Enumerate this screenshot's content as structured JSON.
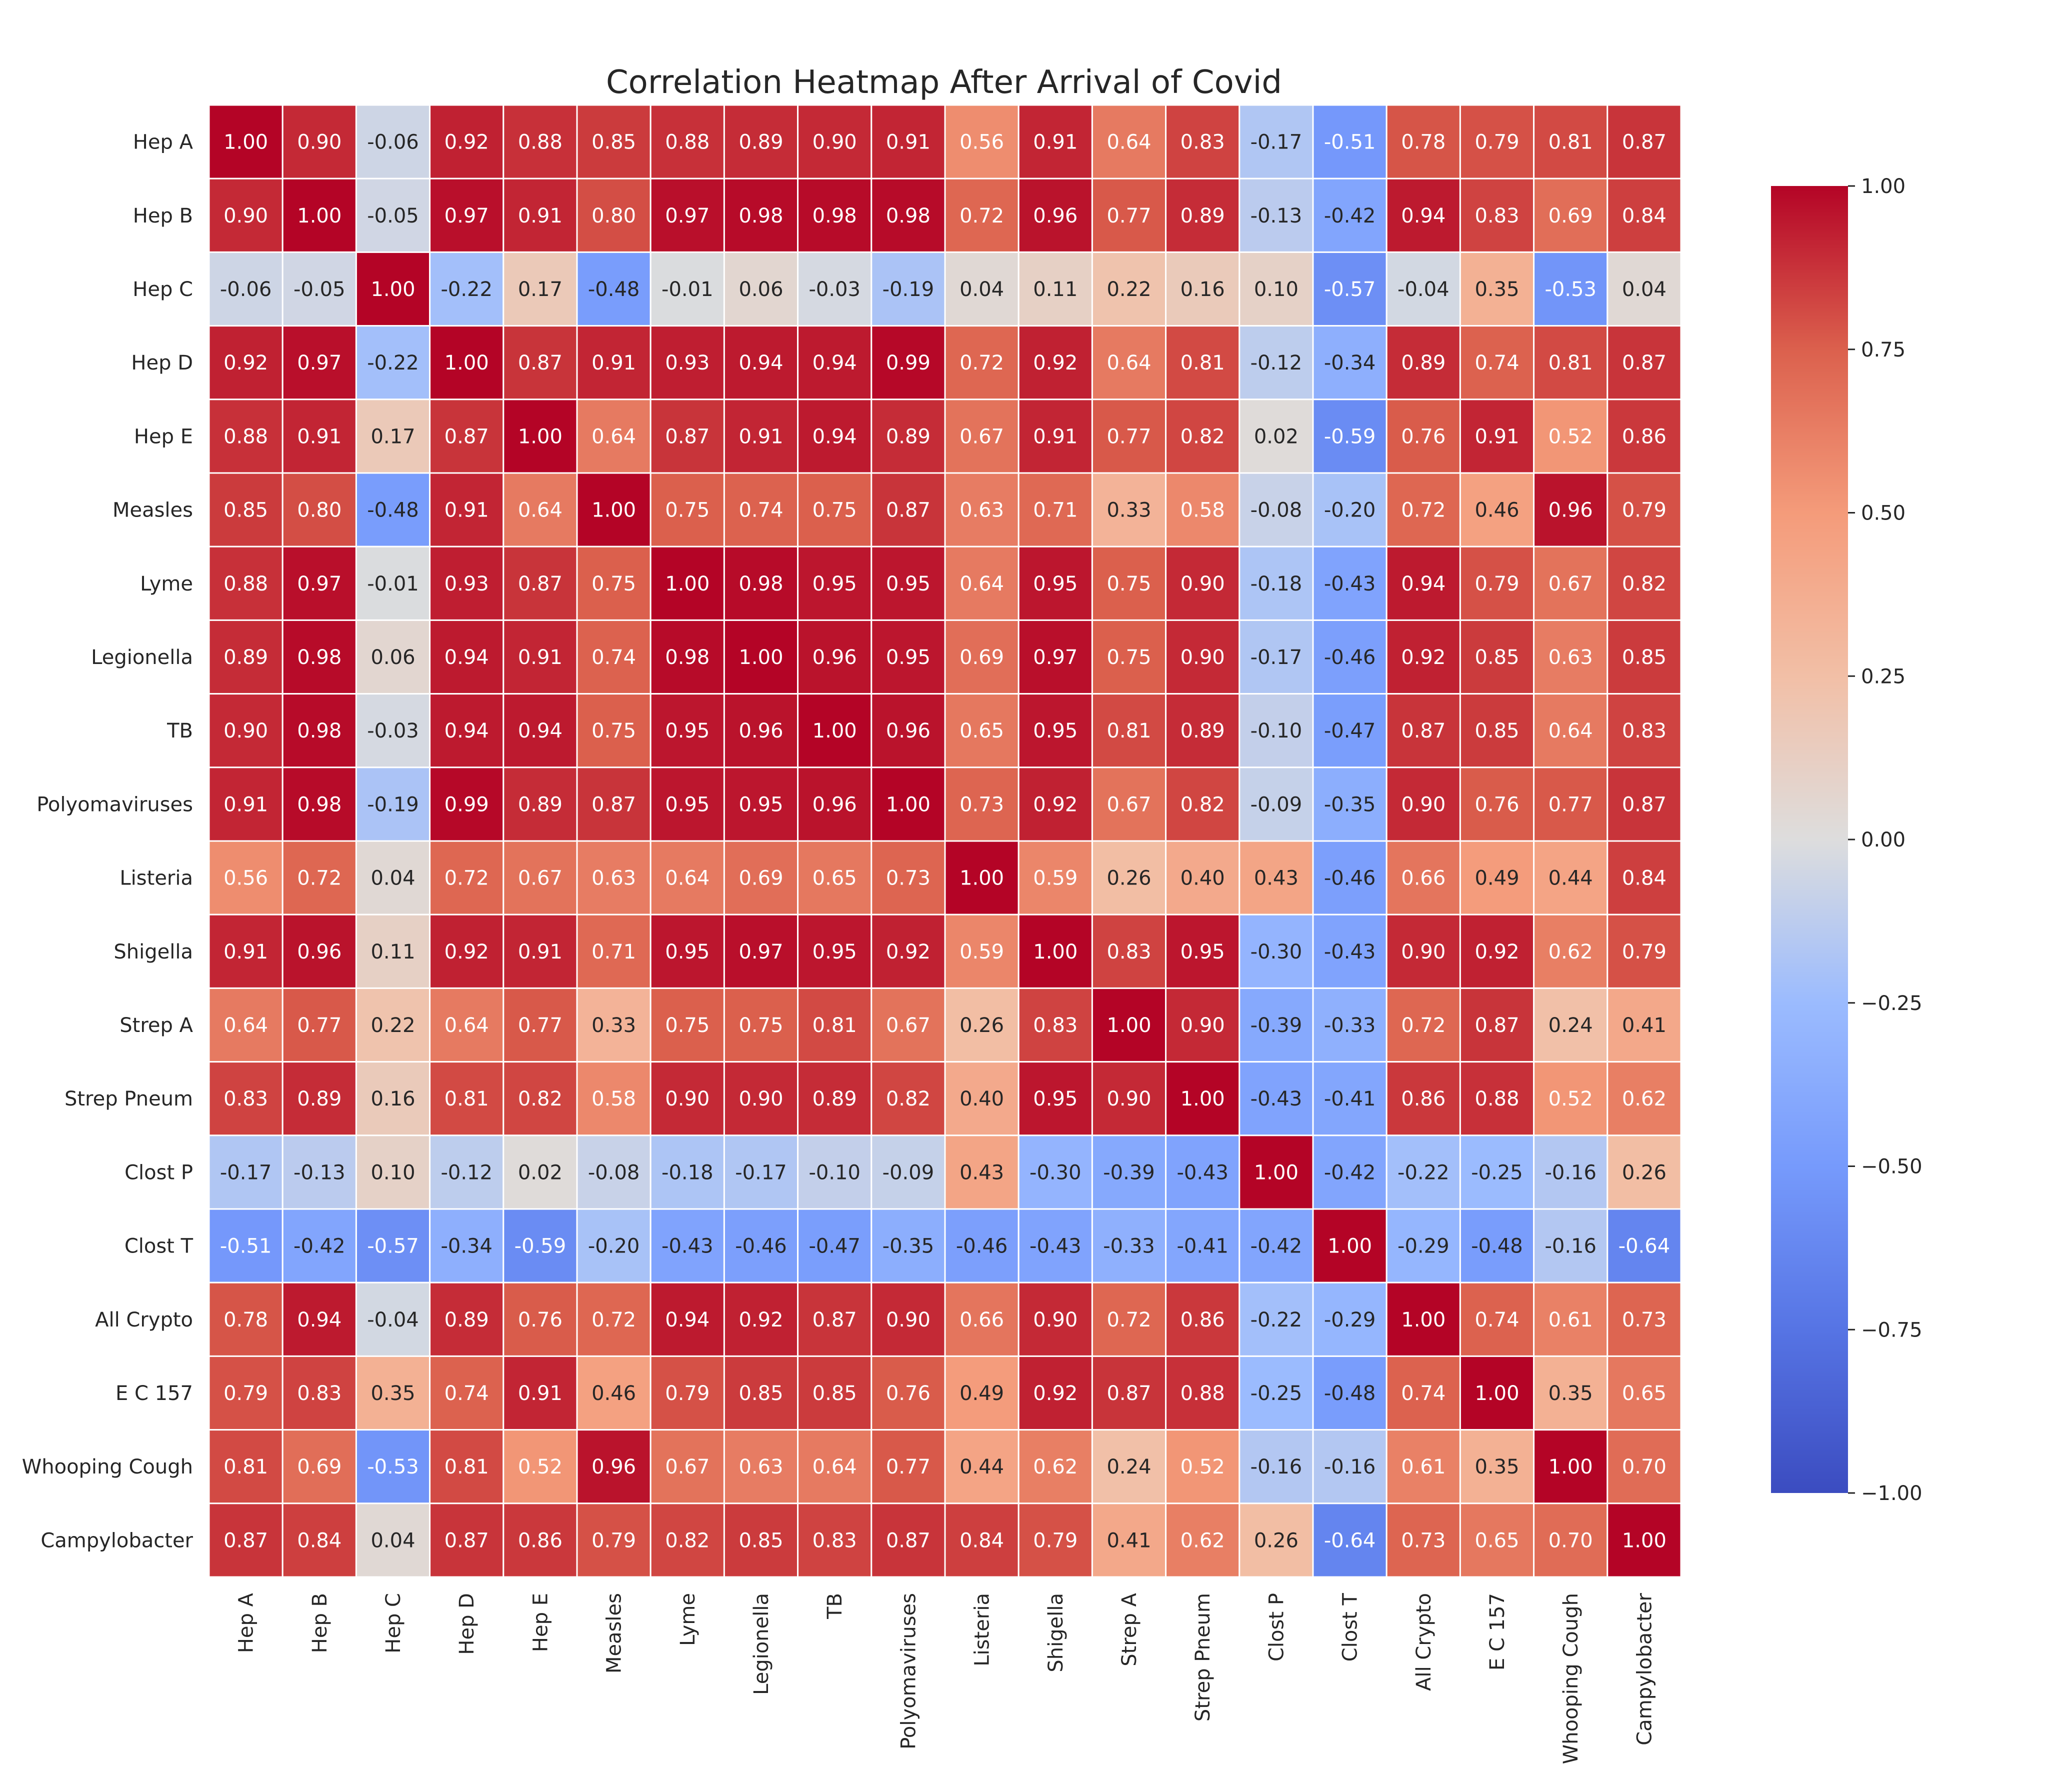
{
  "chart_data": {
    "type": "heatmap",
    "title": "Correlation Heatmap After Arrival of Covid",
    "xlabel": "",
    "ylabel": "",
    "labels": [
      "Hep A",
      "Hep B",
      "Hep C",
      "Hep D",
      "Hep E",
      "Measles",
      "Lyme",
      "Legionella",
      "TB",
      "Polyomaviruses",
      "Listeria",
      "Shigella",
      "Strep A",
      "Strep Pneum",
      "Clost P",
      "Clost T",
      "All Crypto",
      "E C 157",
      "Whooping Cough",
      "Campylobacter"
    ],
    "matrix": [
      [
        1.0,
        0.9,
        -0.06,
        0.92,
        0.88,
        0.85,
        0.88,
        0.89,
        0.9,
        0.91,
        0.56,
        0.91,
        0.64,
        0.83,
        -0.17,
        -0.51,
        0.78,
        0.79,
        0.81,
        0.87
      ],
      [
        0.9,
        1.0,
        -0.05,
        0.97,
        0.91,
        0.8,
        0.97,
        0.98,
        0.98,
        0.98,
        0.72,
        0.96,
        0.77,
        0.89,
        -0.13,
        -0.42,
        0.94,
        0.83,
        0.69,
        0.84
      ],
      [
        -0.06,
        -0.05,
        1.0,
        -0.22,
        0.17,
        -0.48,
        -0.01,
        0.06,
        -0.03,
        -0.19,
        0.04,
        0.11,
        0.22,
        0.16,
        0.1,
        -0.57,
        -0.04,
        0.35,
        -0.53,
        0.04
      ],
      [
        0.92,
        0.97,
        -0.22,
        1.0,
        0.87,
        0.91,
        0.93,
        0.94,
        0.94,
        0.99,
        0.72,
        0.92,
        0.64,
        0.81,
        -0.12,
        -0.34,
        0.89,
        0.74,
        0.81,
        0.87
      ],
      [
        0.88,
        0.91,
        0.17,
        0.87,
        1.0,
        0.64,
        0.87,
        0.91,
        0.94,
        0.89,
        0.67,
        0.91,
        0.77,
        0.82,
        0.02,
        -0.59,
        0.76,
        0.91,
        0.52,
        0.86
      ],
      [
        0.85,
        0.8,
        -0.48,
        0.91,
        0.64,
        1.0,
        0.75,
        0.74,
        0.75,
        0.87,
        0.63,
        0.71,
        0.33,
        0.58,
        -0.08,
        -0.2,
        0.72,
        0.46,
        0.96,
        0.79
      ],
      [
        0.88,
        0.97,
        -0.01,
        0.93,
        0.87,
        0.75,
        1.0,
        0.98,
        0.95,
        0.95,
        0.64,
        0.95,
        0.75,
        0.9,
        -0.18,
        -0.43,
        0.94,
        0.79,
        0.67,
        0.82
      ],
      [
        0.89,
        0.98,
        0.06,
        0.94,
        0.91,
        0.74,
        0.98,
        1.0,
        0.96,
        0.95,
        0.69,
        0.97,
        0.75,
        0.9,
        -0.17,
        -0.46,
        0.92,
        0.85,
        0.63,
        0.85
      ],
      [
        0.9,
        0.98,
        -0.03,
        0.94,
        0.94,
        0.75,
        0.95,
        0.96,
        1.0,
        0.96,
        0.65,
        0.95,
        0.81,
        0.89,
        -0.1,
        -0.47,
        0.87,
        0.85,
        0.64,
        0.83
      ],
      [
        0.91,
        0.98,
        -0.19,
        0.99,
        0.89,
        0.87,
        0.95,
        0.95,
        0.96,
        1.0,
        0.73,
        0.92,
        0.67,
        0.82,
        -0.09,
        -0.35,
        0.9,
        0.76,
        0.77,
        0.87
      ],
      [
        0.56,
        0.72,
        0.04,
        0.72,
        0.67,
        0.63,
        0.64,
        0.69,
        0.65,
        0.73,
        1.0,
        0.59,
        0.26,
        0.4,
        0.43,
        -0.46,
        0.66,
        0.49,
        0.44,
        0.84
      ],
      [
        0.91,
        0.96,
        0.11,
        0.92,
        0.91,
        0.71,
        0.95,
        0.97,
        0.95,
        0.92,
        0.59,
        1.0,
        0.83,
        0.95,
        -0.3,
        -0.43,
        0.9,
        0.92,
        0.62,
        0.79
      ],
      [
        0.64,
        0.77,
        0.22,
        0.64,
        0.77,
        0.33,
        0.75,
        0.75,
        0.81,
        0.67,
        0.26,
        0.83,
        1.0,
        0.9,
        -0.39,
        -0.33,
        0.72,
        0.87,
        0.24,
        0.41
      ],
      [
        0.83,
        0.89,
        0.16,
        0.81,
        0.82,
        0.58,
        0.9,
        0.9,
        0.89,
        0.82,
        0.4,
        0.95,
        0.9,
        1.0,
        -0.43,
        -0.41,
        0.86,
        0.88,
        0.52,
        0.62
      ],
      [
        -0.17,
        -0.13,
        0.1,
        -0.12,
        0.02,
        -0.08,
        -0.18,
        -0.17,
        -0.1,
        -0.09,
        0.43,
        -0.3,
        -0.39,
        -0.43,
        1.0,
        -0.42,
        -0.22,
        -0.25,
        -0.16,
        0.26
      ],
      [
        -0.51,
        -0.42,
        -0.57,
        -0.34,
        -0.59,
        -0.2,
        -0.43,
        -0.46,
        -0.47,
        -0.35,
        -0.46,
        -0.43,
        -0.33,
        -0.41,
        -0.42,
        1.0,
        -0.29,
        -0.48,
        -0.16,
        -0.64
      ],
      [
        0.78,
        0.94,
        -0.04,
        0.89,
        0.76,
        0.72,
        0.94,
        0.92,
        0.87,
        0.9,
        0.66,
        0.9,
        0.72,
        0.86,
        -0.22,
        -0.29,
        1.0,
        0.74,
        0.61,
        0.73
      ],
      [
        0.79,
        0.83,
        0.35,
        0.74,
        0.91,
        0.46,
        0.79,
        0.85,
        0.85,
        0.76,
        0.49,
        0.92,
        0.87,
        0.88,
        -0.25,
        -0.48,
        0.74,
        1.0,
        0.35,
        0.65
      ],
      [
        0.81,
        0.69,
        -0.53,
        0.81,
        0.52,
        0.96,
        0.67,
        0.63,
        0.64,
        0.77,
        0.44,
        0.62,
        0.24,
        0.52,
        -0.16,
        -0.16,
        0.61,
        0.35,
        1.0,
        0.7
      ],
      [
        0.87,
        0.84,
        0.04,
        0.87,
        0.86,
        0.79,
        0.82,
        0.85,
        0.83,
        0.87,
        0.84,
        0.79,
        0.41,
        0.62,
        0.26,
        -0.64,
        0.73,
        0.65,
        0.7,
        1.0
      ]
    ],
    "vmin": -1.0,
    "vmax": 1.0,
    "colormap": "coolwarm",
    "colorbar_ticks": [
      "1.00",
      "0.75",
      "0.50",
      "0.25",
      "0.00",
      "−0.25",
      "−0.50",
      "−0.75",
      "−1.00"
    ],
    "colorbar_tick_values": [
      1.0,
      0.75,
      0.5,
      0.25,
      0.0,
      -0.25,
      -0.5,
      -0.75,
      -1.0
    ],
    "grid": true
  }
}
